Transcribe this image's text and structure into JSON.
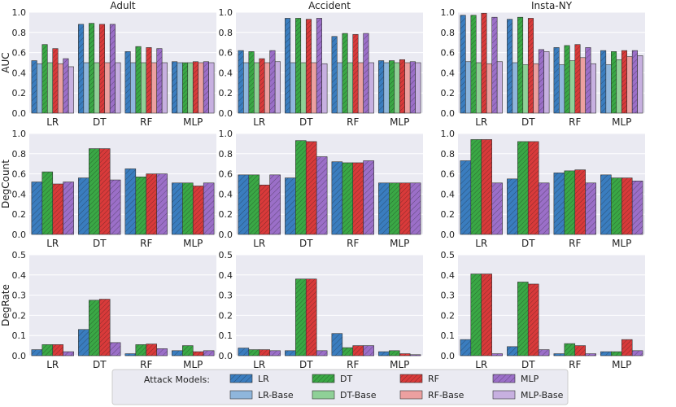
{
  "colors": {
    "plot_bg": "#eaeaf2",
    "grid": "#ffffff",
    "LR": "#3a7dbf",
    "DT": "#3aa845",
    "RF": "#d93a3a",
    "MLP": "#9b6fc8",
    "LR-Base": "#8fb6dc",
    "DT-Base": "#8fd097",
    "RF-Base": "#eca0a0",
    "MLP-Base": "#c7b0e0"
  },
  "legend": {
    "title": "Attack Models:",
    "entries": [
      "LR",
      "DT",
      "RF",
      "MLP",
      "LR-Base",
      "DT-Base",
      "RF-Base",
      "MLP-Base"
    ]
  },
  "chart_data": [
    {
      "type": "bar",
      "title": "Adult",
      "ylabel": "AUC",
      "ylim": [
        0,
        1.0
      ],
      "yticks": [
        "0.0",
        "0.2",
        "0.4",
        "0.6",
        "0.8",
        "1.0"
      ],
      "ytick_values": [
        0,
        0.2,
        0.4,
        0.6,
        0.8,
        1.0
      ],
      "categories": [
        "LR",
        "DT",
        "RF",
        "MLP"
      ],
      "series": [
        {
          "name": "LR",
          "values": [
            0.52,
            0.88,
            0.61,
            0.51
          ]
        },
        {
          "name": "LR-Base",
          "values": [
            0.49,
            0.5,
            0.5,
            0.5
          ]
        },
        {
          "name": "DT",
          "values": [
            0.68,
            0.89,
            0.66,
            0.5
          ]
        },
        {
          "name": "DT-Base",
          "values": [
            0.5,
            0.5,
            0.5,
            0.5
          ]
        },
        {
          "name": "RF",
          "values": [
            0.64,
            0.88,
            0.65,
            0.51
          ]
        },
        {
          "name": "RF-Base",
          "values": [
            0.49,
            0.5,
            0.5,
            0.5
          ]
        },
        {
          "name": "MLP",
          "values": [
            0.54,
            0.88,
            0.64,
            0.51
          ]
        },
        {
          "name": "MLP-Base",
          "values": [
            0.46,
            0.5,
            0.5,
            0.5
          ]
        }
      ]
    },
    {
      "type": "bar",
      "title": "Accident",
      "ylabel": "",
      "ylim": [
        0,
        1.0
      ],
      "yticks": [
        "0.0",
        "0.2",
        "0.4",
        "0.6",
        "0.8",
        "1.0"
      ],
      "ytick_values": [
        0,
        0.2,
        0.4,
        0.6,
        0.8,
        1.0
      ],
      "categories": [
        "LR",
        "DT",
        "RF",
        "MLP"
      ],
      "series": [
        {
          "name": "LR",
          "values": [
            0.62,
            0.94,
            0.76,
            0.52
          ]
        },
        {
          "name": "LR-Base",
          "values": [
            0.5,
            0.5,
            0.5,
            0.5
          ]
        },
        {
          "name": "DT",
          "values": [
            0.61,
            0.94,
            0.79,
            0.52
          ]
        },
        {
          "name": "DT-Base",
          "values": [
            0.5,
            0.5,
            0.5,
            0.5
          ]
        },
        {
          "name": "RF",
          "values": [
            0.54,
            0.93,
            0.78,
            0.53
          ]
        },
        {
          "name": "RF-Base",
          "values": [
            0.5,
            0.5,
            0.5,
            0.5
          ]
        },
        {
          "name": "MLP",
          "values": [
            0.62,
            0.94,
            0.79,
            0.51
          ]
        },
        {
          "name": "MLP-Base",
          "values": [
            0.51,
            0.49,
            0.5,
            0.5
          ]
        }
      ]
    },
    {
      "type": "bar",
      "title": "Insta-NY",
      "ylabel": "",
      "ylim": [
        0,
        1.0
      ],
      "yticks": [
        "0.0",
        "0.2",
        "0.4",
        "0.6",
        "0.8",
        "1.0"
      ],
      "ytick_values": [
        0,
        0.2,
        0.4,
        0.6,
        0.8,
        1.0
      ],
      "categories": [
        "LR",
        "DT",
        "RF",
        "MLP"
      ],
      "series": [
        {
          "name": "LR",
          "values": [
            0.97,
            0.93,
            0.65,
            0.62
          ]
        },
        {
          "name": "LR-Base",
          "values": [
            0.51,
            0.5,
            0.48,
            0.48
          ]
        },
        {
          "name": "DT",
          "values": [
            0.97,
            0.95,
            0.67,
            0.61
          ]
        },
        {
          "name": "DT-Base",
          "values": [
            0.5,
            0.48,
            0.52,
            0.53
          ]
        },
        {
          "name": "RF",
          "values": [
            0.99,
            0.94,
            0.68,
            0.62
          ]
        },
        {
          "name": "RF-Base",
          "values": [
            0.49,
            0.49,
            0.55,
            0.56
          ]
        },
        {
          "name": "MLP",
          "values": [
            0.95,
            0.63,
            0.65,
            0.62
          ]
        },
        {
          "name": "MLP-Base",
          "values": [
            0.51,
            0.61,
            0.49,
            0.57
          ]
        }
      ]
    },
    {
      "type": "bar",
      "title": "",
      "ylabel": "DegCount",
      "ylim": [
        0,
        1.0
      ],
      "yticks": [
        "0.0",
        "0.2",
        "0.4",
        "0.6",
        "0.8",
        "1.0"
      ],
      "ytick_values": [
        0,
        0.2,
        0.4,
        0.6,
        0.8,
        1.0
      ],
      "categories": [
        "LR",
        "DT",
        "RF",
        "MLP"
      ],
      "series": [
        {
          "name": "LR",
          "values": [
            0.52,
            0.56,
            0.65,
            0.51
          ]
        },
        {
          "name": "DT",
          "values": [
            0.62,
            0.85,
            0.57,
            0.51
          ]
        },
        {
          "name": "RF",
          "values": [
            0.5,
            0.85,
            0.6,
            0.48
          ]
        },
        {
          "name": "MLP",
          "values": [
            0.52,
            0.54,
            0.6,
            0.51
          ]
        }
      ]
    },
    {
      "type": "bar",
      "title": "",
      "ylabel": "",
      "ylim": [
        0,
        1.0
      ],
      "yticks": [
        "0.0",
        "0.2",
        "0.4",
        "0.6",
        "0.8",
        "1.0"
      ],
      "ytick_values": [
        0,
        0.2,
        0.4,
        0.6,
        0.8,
        1.0
      ],
      "categories": [
        "LR",
        "DT",
        "RF",
        "MLP"
      ],
      "series": [
        {
          "name": "LR",
          "values": [
            0.59,
            0.56,
            0.72,
            0.51
          ]
        },
        {
          "name": "DT",
          "values": [
            0.59,
            0.93,
            0.71,
            0.51
          ]
        },
        {
          "name": "RF",
          "values": [
            0.49,
            0.92,
            0.71,
            0.51
          ]
        },
        {
          "name": "MLP",
          "values": [
            0.59,
            0.77,
            0.73,
            0.51
          ]
        }
      ]
    },
    {
      "type": "bar",
      "title": "",
      "ylabel": "",
      "ylim": [
        0,
        1.0
      ],
      "yticks": [
        "0.0",
        "0.2",
        "0.4",
        "0.6",
        "0.8",
        "1.0"
      ],
      "ytick_values": [
        0,
        0.2,
        0.4,
        0.6,
        0.8,
        1.0
      ],
      "categories": [
        "LR",
        "DT",
        "RF",
        "MLP"
      ],
      "series": [
        {
          "name": "LR",
          "values": [
            0.73,
            0.55,
            0.61,
            0.59
          ]
        },
        {
          "name": "DT",
          "values": [
            0.94,
            0.92,
            0.63,
            0.56
          ]
        },
        {
          "name": "RF",
          "values": [
            0.94,
            0.92,
            0.64,
            0.56
          ]
        },
        {
          "name": "MLP",
          "values": [
            0.51,
            0.51,
            0.51,
            0.53
          ]
        }
      ]
    },
    {
      "type": "bar",
      "title": "",
      "ylabel": "DegRate",
      "ylim": [
        0,
        0.5
      ],
      "yticks": [
        "0.0",
        "0.1",
        "0.2",
        "0.3",
        "0.4",
        "0.5"
      ],
      "ytick_values": [
        0,
        0.1,
        0.2,
        0.3,
        0.4,
        0.5
      ],
      "categories": [
        "LR",
        "DT",
        "RF",
        "MLP"
      ],
      "series": [
        {
          "name": "LR",
          "values": [
            0.03,
            0.13,
            0.01,
            0.025
          ]
        },
        {
          "name": "DT",
          "values": [
            0.055,
            0.275,
            0.055,
            0.05
          ]
        },
        {
          "name": "RF",
          "values": [
            0.055,
            0.28,
            0.058,
            0.02
          ]
        },
        {
          "name": "MLP",
          "values": [
            0.02,
            0.065,
            0.035,
            0.025
          ]
        }
      ]
    },
    {
      "type": "bar",
      "title": "",
      "ylabel": "",
      "ylim": [
        0,
        0.5
      ],
      "yticks": [
        "0.0",
        "0.1",
        "0.2",
        "0.3",
        "0.4",
        "0.5"
      ],
      "ytick_values": [
        0,
        0.1,
        0.2,
        0.3,
        0.4,
        0.5
      ],
      "categories": [
        "LR",
        "DT",
        "RF",
        "MLP"
      ],
      "series": [
        {
          "name": "LR",
          "values": [
            0.038,
            0.025,
            0.11,
            0.02
          ]
        },
        {
          "name": "DT",
          "values": [
            0.03,
            0.38,
            0.04,
            0.025
          ]
        },
        {
          "name": "RF",
          "values": [
            0.03,
            0.38,
            0.05,
            0.01
          ]
        },
        {
          "name": "MLP",
          "values": [
            0.025,
            0.025,
            0.05,
            0.005
          ]
        }
      ]
    },
    {
      "type": "bar",
      "title": "",
      "ylabel": "",
      "ylim": [
        0,
        0.5
      ],
      "yticks": [
        "0.0",
        "0.1",
        "0.2",
        "0.3",
        "0.4",
        "0.5"
      ],
      "ytick_values": [
        0,
        0.1,
        0.2,
        0.3,
        0.4,
        0.5
      ],
      "categories": [
        "LR",
        "DT",
        "RF",
        "MLP"
      ],
      "series": [
        {
          "name": "LR",
          "values": [
            0.08,
            0.045,
            0.01,
            0.02
          ]
        },
        {
          "name": "DT",
          "values": [
            0.405,
            0.365,
            0.06,
            0.02
          ]
        },
        {
          "name": "RF",
          "values": [
            0.405,
            0.355,
            0.05,
            0.08
          ]
        },
        {
          "name": "MLP",
          "values": [
            0.01,
            0.03,
            0.01,
            0.025
          ]
        }
      ]
    }
  ]
}
